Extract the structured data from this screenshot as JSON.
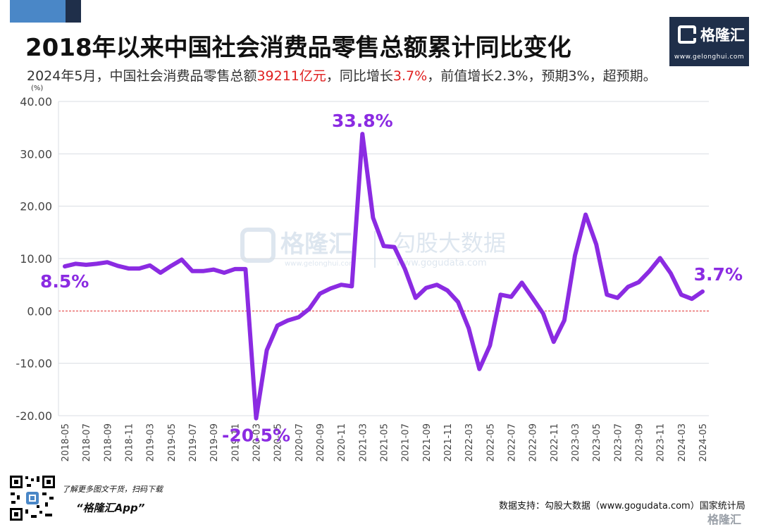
{
  "header": {
    "title": "2018年以来中国社会消费品零售总额累计同比变化",
    "subtitle_pre": "2024年5月，中国社会消费品零售总额",
    "subtitle_hl1": "39211亿元",
    "subtitle_mid": "，同比增长",
    "subtitle_hl2": "3.7%",
    "subtitle_post": "，前值增长2.3%，预期3%，超预期。"
  },
  "logo": {
    "name": "格隆汇",
    "url": "www.gelonghui.com"
  },
  "watermark": {
    "brand1": "格隆汇",
    "url1": "www.gelonghui.com",
    "brand2": "勾股大数据",
    "url2": "www.gogudata.com"
  },
  "footer": {
    "promo_line1": "了解更多图文干货，扫码下载",
    "promo_line2": "“格隆汇App”",
    "source": "数据支持：勾股大数据（www.gogudata.com）国家统计局",
    "brand": "格隆汇"
  },
  "chart_data": {
    "type": "line",
    "unit_label": "(%)",
    "ylim": [
      -20,
      40
    ],
    "yticks": [
      "40.00",
      "30.00",
      "20.00",
      "10.00",
      "0.00",
      "-10.00",
      "-20.00"
    ],
    "ytick_values": [
      40,
      30,
      20,
      10,
      0,
      -10,
      -20
    ],
    "x_tick_labels": [
      "2018-05",
      "2018-07",
      "2018-09",
      "2018-11",
      "2019-03",
      "2019-05",
      "2019-07",
      "2019-09",
      "2019-11",
      "2020-03",
      "2020-05",
      "2020-07",
      "2020-09",
      "2020-11",
      "2021-03",
      "2021-05",
      "2021-07",
      "2021-09",
      "2021-11",
      "2022-03",
      "2022-05",
      "2022-07",
      "2022-09",
      "2022-11",
      "2023-03",
      "2023-05",
      "2023-07",
      "2023-09",
      "2023-11",
      "2024-03",
      "2024-05"
    ],
    "series": [
      {
        "color": "#8b2be2",
        "x": [
          "2018-05",
          "2018-06",
          "2018-07",
          "2018-08",
          "2018-09",
          "2018-10",
          "2018-11",
          "2018-12",
          "2019-03",
          "2019-04",
          "2019-05",
          "2019-06",
          "2019-07",
          "2019-08",
          "2019-09",
          "2019-10",
          "2019-11",
          "2019-12",
          "2020-03",
          "2020-04",
          "2020-05",
          "2020-06",
          "2020-07",
          "2020-08",
          "2020-09",
          "2020-10",
          "2020-11",
          "2020-12",
          "2021-03",
          "2021-04",
          "2021-05",
          "2021-06",
          "2021-07",
          "2021-08",
          "2021-09",
          "2021-10",
          "2021-11",
          "2021-12",
          "2022-03",
          "2022-04",
          "2022-05",
          "2022-06",
          "2022-07",
          "2022-08",
          "2022-09",
          "2022-10",
          "2022-11",
          "2022-12",
          "2023-03",
          "2023-04",
          "2023-05",
          "2023-06",
          "2023-07",
          "2023-08",
          "2023-09",
          "2023-10",
          "2023-11",
          "2023-12",
          "2024-03",
          "2024-04",
          "2024-05"
        ],
        "values": [
          8.5,
          9.0,
          8.8,
          9.0,
          9.3,
          8.6,
          8.1,
          8.1,
          8.7,
          7.3,
          8.6,
          9.8,
          7.6,
          7.6,
          7.9,
          7.3,
          8.0,
          8.0,
          -20.5,
          -7.5,
          -2.8,
          -1.8,
          -1.2,
          0.4,
          3.3,
          4.3,
          5.0,
          4.7,
          33.8,
          17.8,
          12.4,
          12.2,
          8.0,
          2.5,
          4.4,
          5.0,
          3.9,
          1.7,
          -3.3,
          -11.1,
          -6.6,
          3.1,
          2.7,
          5.4,
          2.5,
          -0.5,
          -5.9,
          -1.8,
          10.6,
          18.4,
          12.7,
          3.1,
          2.5,
          4.6,
          5.5,
          7.6,
          10.1,
          7.2,
          3.1,
          2.3,
          3.7
        ]
      }
    ],
    "annotations": [
      {
        "x": "2018-05",
        "text": "8.5%"
      },
      {
        "x": "2020-03",
        "text": "-20.5%"
      },
      {
        "x": "2021-03",
        "text": "33.8%"
      },
      {
        "x": "2024-05",
        "text": "3.7%"
      }
    ],
    "zero_line": true,
    "grid": true
  }
}
